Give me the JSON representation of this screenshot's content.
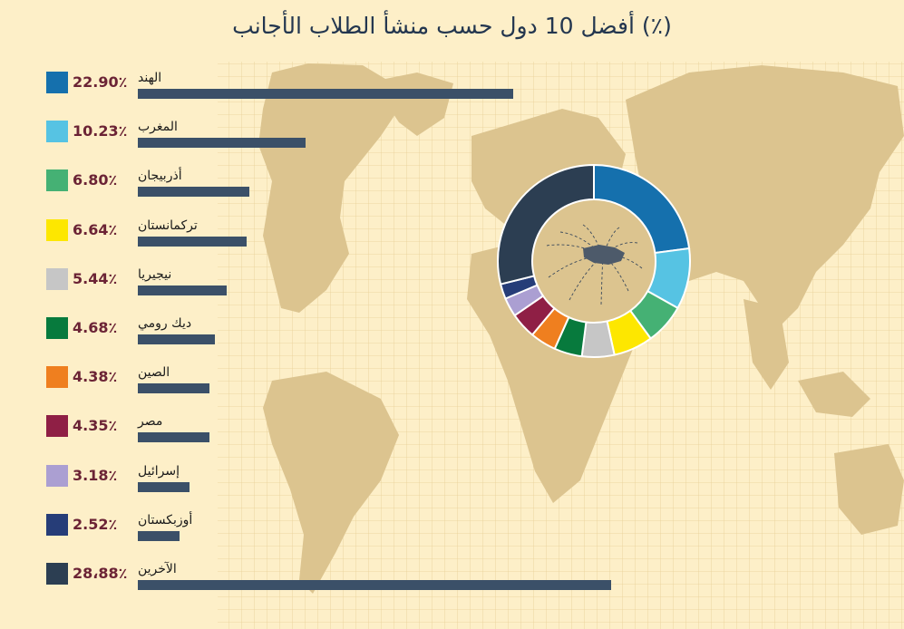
{
  "title": "(٪) أفضل 10 دول حسب منشأ الطلاب الأجانب",
  "chart_data": {
    "type": "bar",
    "title": "(٪) أفضل 10 دول حسب منشأ الطلاب الأجانب",
    "xlabel": "",
    "ylabel": "",
    "xlim": [
      0,
      29
    ],
    "grid": true,
    "legend_placement": "left",
    "unit": "%",
    "items": [
      {
        "label": "الهند",
        "value": 22.9,
        "display": "22.90٪",
        "color": "#1570ad"
      },
      {
        "label": "المغرب",
        "value": 10.23,
        "display": "10.23٪",
        "color": "#56c3e3"
      },
      {
        "label": "أذربيجان",
        "value": 6.8,
        "display": "6.80٪",
        "color": "#45b174"
      },
      {
        "label": "تركمانستان",
        "value": 6.64,
        "display": "6.64٪",
        "color": "#fde700"
      },
      {
        "label": "نيجيريا",
        "value": 5.44,
        "display": "5.44٪",
        "color": "#c6c6c6"
      },
      {
        "label": "ديك رومي",
        "value": 4.68,
        "display": "4.68٪",
        "color": "#077a3d"
      },
      {
        "label": "الصين",
        "value": 4.38,
        "display": "4.38٪",
        "color": "#ef7f1f"
      },
      {
        "label": "مصر",
        "value": 4.35,
        "display": "4.35٪",
        "color": "#8f1f45"
      },
      {
        "label": "إسرائيل",
        "value": 3.18,
        "display": "3.18٪",
        "color": "#ab9fd2"
      },
      {
        "label": "أوزبكستان",
        "value": 2.52,
        "display": "2.52٪",
        "color": "#263d78"
      },
      {
        "label": "الآخرين",
        "value": 28.88,
        "display": "28،88٪",
        "color": "#2c3e52"
      }
    ],
    "donut_order": [
      "الهند",
      "المغرب",
      "أذربيجان",
      "تركمانستان",
      "نيجيريا",
      "ديك رومي",
      "الصين",
      "مصر",
      "إسرائيل",
      "أوزبكستان",
      "الآخرين"
    ]
  }
}
